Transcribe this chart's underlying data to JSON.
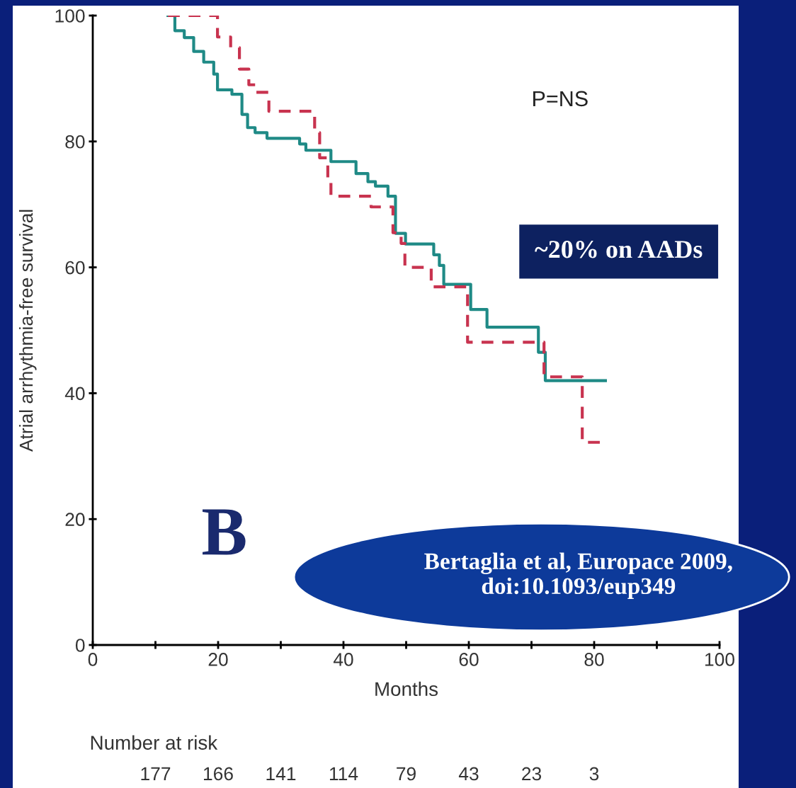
{
  "chart_data": {
    "type": "step",
    "xlabel": "Months",
    "ylabel": "Atrial arrhythmia-free survival",
    "xlim": [
      0,
      100
    ],
    "ylim": [
      0,
      100
    ],
    "xticks": [
      0,
      {
        "value": 10,
        "label": null
      },
      20,
      {
        "value": 30,
        "label": null
      },
      40,
      {
        "value": 50,
        "label": null
      },
      60,
      {
        "value": 70,
        "label": null
      },
      80,
      {
        "value": 90,
        "label": null
      },
      100
    ],
    "yticks": [
      0,
      20,
      40,
      60,
      80,
      100
    ],
    "grid": false,
    "legend": false,
    "series": [
      {
        "color": "#1f8a86",
        "line_style": "solid",
        "x": [
          12.0,
          13.1,
          14.6,
          16.1,
          17.7,
          19.3,
          19.9,
          22.2,
          23.8,
          24.7,
          25.9,
          27.8,
          33.0,
          34.0,
          38.0,
          42.0,
          43.9,
          45.1,
          47.1,
          48.3,
          49.9,
          54.4,
          55.3,
          56.0,
          60.3,
          62.9,
          71.1,
          72.2,
          81.8
        ],
        "values": [
          100,
          97.6,
          96.5,
          94.3,
          92.6,
          90.7,
          88.2,
          87.5,
          84.3,
          82.2,
          81.4,
          80.5,
          79.6,
          78.6,
          76.8,
          74.9,
          73.6,
          72.9,
          71.3,
          65.4,
          63.7,
          62.0,
          60.3,
          57.3,
          53.3,
          50.5,
          46.5,
          42.0,
          42.0
        ]
      },
      {
        "color": "#c8334f",
        "line_style": "dashed",
        "x": [
          12.0,
          19.9,
          22.0,
          23.4,
          24.9,
          26.0,
          28.1,
          35.4,
          36.2,
          37.5,
          38.0,
          44.4,
          47.9,
          49.2,
          49.8,
          54.0,
          59.8,
          72.0,
          78.1,
          81.5
        ],
        "values": [
          100,
          96.6,
          94.9,
          91.5,
          89.0,
          87.8,
          84.8,
          81.4,
          77.4,
          73.5,
          71.3,
          69.6,
          65.5,
          63.8,
          60.0,
          56.9,
          48.1,
          42.6,
          32.2,
          32.2
        ]
      }
    ],
    "annotations": [
      "P=NS",
      "~20% on AADs",
      "B",
      "Bertaglia et al, Europace 2009, doi:10.1093/eup349",
      "Number at risk",
      "177",
      "166",
      "141",
      "114",
      "79",
      "43",
      "23",
      "3"
    ]
  }
}
